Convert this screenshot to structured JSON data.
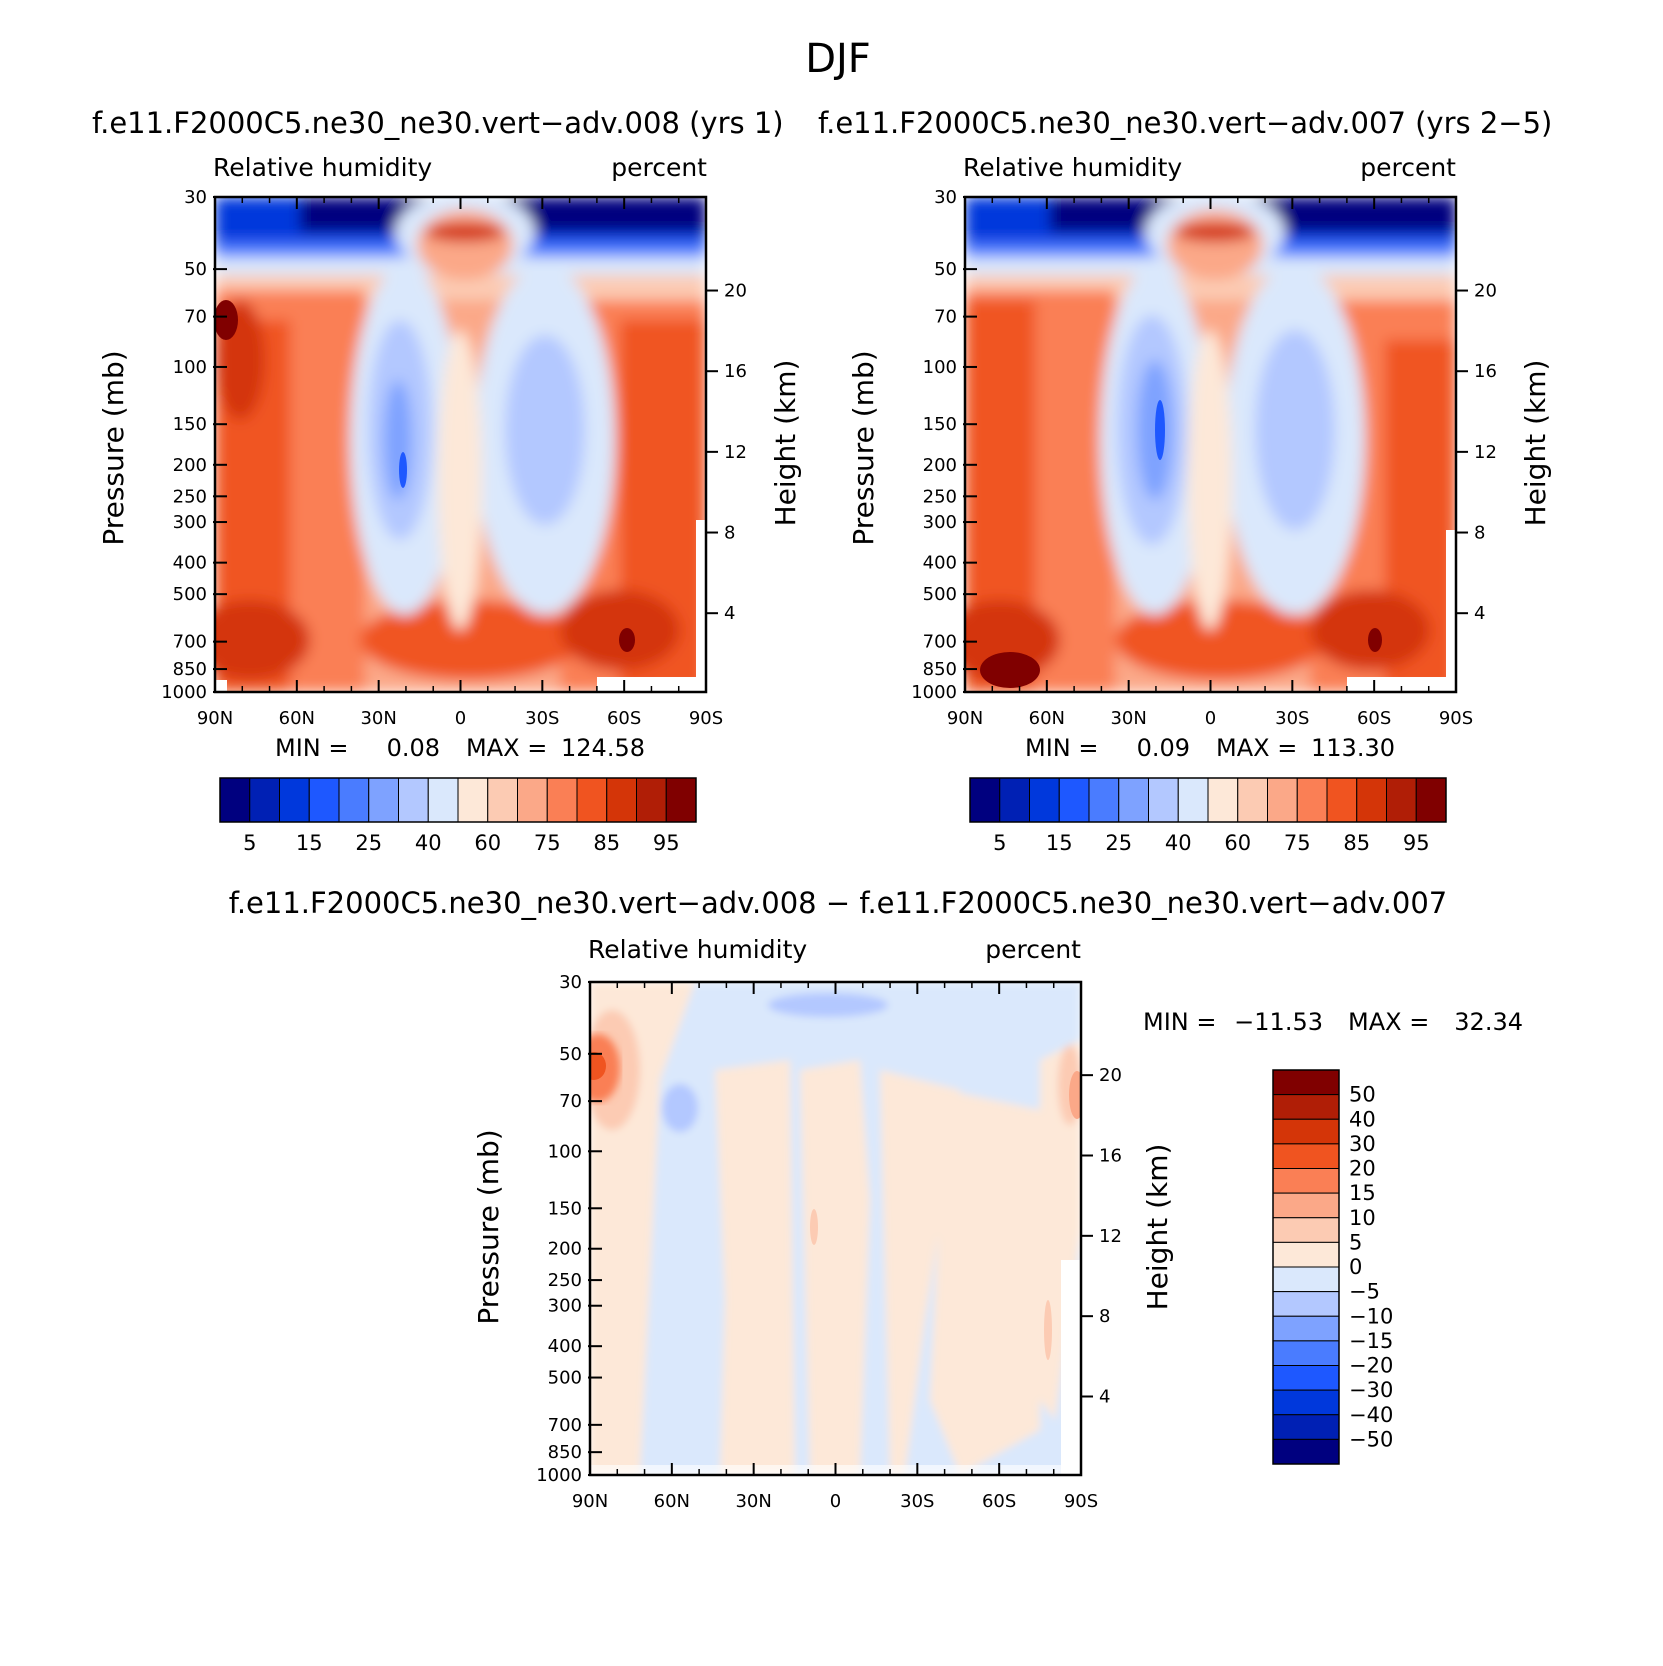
{
  "figure_title": "DJF",
  "colors": {
    "abs_palette": [
      "#00007f",
      "#0020b4",
      "#0038dc",
      "#1e58ff",
      "#4a7cff",
      "#7ea2ff",
      "#b3c8ff",
      "#dae8fc",
      "#fde8d8",
      "#fccbb3",
      "#fba888",
      "#fa7f55",
      "#f05420",
      "#d43508",
      "#b01e06",
      "#800000"
    ],
    "diff_palette": [
      "#00007f",
      "#0020b4",
      "#0038dc",
      "#1e58ff",
      "#4a7cff",
      "#7ea2ff",
      "#b3c8ff",
      "#dae8fc",
      "#fde8d8",
      "#fccbb3",
      "#fba888",
      "#fa7f55",
      "#f05420",
      "#d43508",
      "#b01e06",
      "#800000"
    ]
  },
  "panels": [
    {
      "title": "f.e11.F2000C5.ne30_ne30.vert−adv.008 (yrs 1)",
      "left_label": "Relative humidity",
      "right_label": "percent",
      "y_axis_label": "Pressure (mb)",
      "y2_axis_label": "Height (km)",
      "y_ticks": [
        "30",
        "50",
        "70",
        "100",
        "150",
        "200",
        "250",
        "300",
        "400",
        "500",
        "700",
        "850",
        "1000"
      ],
      "y2_ticks": [
        "20",
        "16",
        "12",
        "8",
        "4"
      ],
      "x_ticks": [
        "90N",
        "60N",
        "30N",
        "0",
        "30S",
        "60S",
        "90S"
      ],
      "min_label": "MIN =",
      "min_value": "0.08",
      "max_label": "MAX =",
      "max_value": "124.58"
    },
    {
      "title": "f.e11.F2000C5.ne30_ne30.vert−adv.007 (yrs 2−5)",
      "left_label": "Relative humidity",
      "right_label": "percent",
      "y_axis_label": "Pressure (mb)",
      "y2_axis_label": "Height (km)",
      "y_ticks": [
        "30",
        "50",
        "70",
        "100",
        "150",
        "200",
        "250",
        "300",
        "400",
        "500",
        "700",
        "850",
        "1000"
      ],
      "y2_ticks": [
        "20",
        "16",
        "12",
        "8",
        "4"
      ],
      "x_ticks": [
        "90N",
        "60N",
        "30N",
        "0",
        "30S",
        "60S",
        "90S"
      ],
      "min_label": "MIN =",
      "min_value": "0.09",
      "max_label": "MAX =",
      "max_value": "113.30"
    },
    {
      "title": "f.e11.F2000C5.ne30_ne30.vert−adv.008 − f.e11.F2000C5.ne30_ne30.vert−adv.007",
      "left_label": "Relative humidity",
      "right_label": "percent",
      "y_axis_label": "Pressure (mb)",
      "y2_axis_label": "Height (km)",
      "y_ticks": [
        "30",
        "50",
        "70",
        "100",
        "150",
        "200",
        "250",
        "300",
        "400",
        "500",
        "700",
        "850",
        "1000"
      ],
      "y2_ticks": [
        "20",
        "16",
        "12",
        "8",
        "4"
      ],
      "x_ticks": [
        "90N",
        "60N",
        "30N",
        "0",
        "30S",
        "60S",
        "90S"
      ],
      "min_label": "MIN =",
      "min_value": "−11.53",
      "max_label": "MAX =",
      "max_value": "32.34"
    }
  ],
  "abs_colorbar_labels": [
    "5",
    "15",
    "25",
    "40",
    "60",
    "75",
    "85",
    "95"
  ],
  "diff_colorbar_labels": [
    "50",
    "40",
    "30",
    "20",
    "15",
    "10",
    "5",
    "0",
    "−5",
    "−10",
    "−15",
    "−20",
    "−30",
    "−40",
    "−50"
  ],
  "chart_data": [
    {
      "type": "heatmap",
      "title": "f.e11.F2000C5.ne30_ne30.vert-adv.008 (yrs 1)",
      "variable": "Relative humidity",
      "units": "percent",
      "xlabel": "",
      "ylabel": "Pressure (mb)",
      "y2label": "Height (km)",
      "x_ticks": [
        "90N",
        "60N",
        "30N",
        "0",
        "30S",
        "60S",
        "90S"
      ],
      "y_ticks_mb": [
        30,
        50,
        70,
        100,
        150,
        200,
        250,
        300,
        400,
        500,
        700,
        850,
        1000
      ],
      "y2_ticks_km": [
        20,
        16,
        12,
        8,
        4
      ],
      "ylim_mb": [
        1000,
        30
      ],
      "levels": [
        5,
        10,
        15,
        20,
        25,
        30,
        40,
        50,
        60,
        70,
        75,
        80,
        85,
        90,
        95
      ],
      "min": 0.08,
      "max": 124.58
    },
    {
      "type": "heatmap",
      "title": "f.e11.F2000C5.ne30_ne30.vert-adv.007 (yrs 2-5)",
      "variable": "Relative humidity",
      "units": "percent",
      "xlabel": "",
      "ylabel": "Pressure (mb)",
      "y2label": "Height (km)",
      "x_ticks": [
        "90N",
        "60N",
        "30N",
        "0",
        "30S",
        "60S",
        "90S"
      ],
      "y_ticks_mb": [
        30,
        50,
        70,
        100,
        150,
        200,
        250,
        300,
        400,
        500,
        700,
        850,
        1000
      ],
      "y2_ticks_km": [
        20,
        16,
        12,
        8,
        4
      ],
      "ylim_mb": [
        1000,
        30
      ],
      "levels": [
        5,
        10,
        15,
        20,
        25,
        30,
        40,
        50,
        60,
        70,
        75,
        80,
        85,
        90,
        95
      ],
      "min": 0.09,
      "max": 113.3
    },
    {
      "type": "heatmap",
      "title": "f.e11.F2000C5.ne30_ne30.vert-adv.008 - f.e11.F2000C5.ne30_ne30.vert-adv.007",
      "variable": "Relative humidity",
      "units": "percent",
      "xlabel": "",
      "ylabel": "Pressure (mb)",
      "y2label": "Height (km)",
      "x_ticks": [
        "90N",
        "60N",
        "30N",
        "0",
        "30S",
        "60S",
        "90S"
      ],
      "y_ticks_mb": [
        30,
        50,
        70,
        100,
        150,
        200,
        250,
        300,
        400,
        500,
        700,
        850,
        1000
      ],
      "y2_ticks_km": [
        20,
        16,
        12,
        8,
        4
      ],
      "ylim_mb": [
        1000,
        30
      ],
      "levels": [
        -50,
        -40,
        -30,
        -20,
        -15,
        -10,
        -5,
        0,
        5,
        10,
        15,
        20,
        30,
        40,
        50
      ],
      "min": -11.53,
      "max": 32.34
    }
  ]
}
